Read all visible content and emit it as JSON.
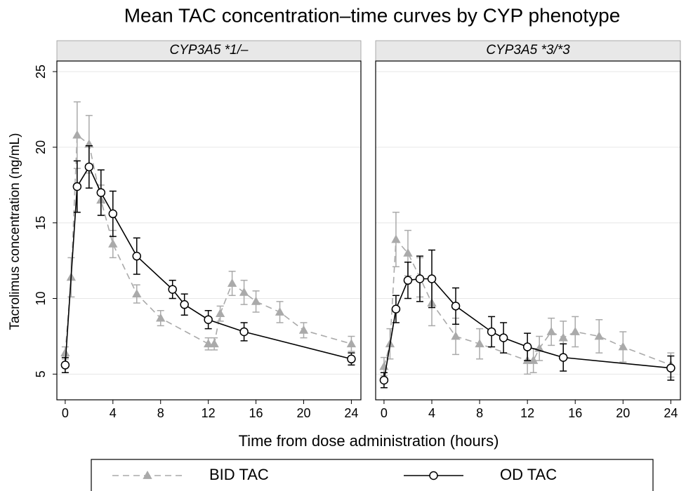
{
  "figure": {
    "title": "Mean TAC concentration–time curves by CYP phenotype",
    "x_label": "Time from dose administration (hours)",
    "y_label": "Tacrolimus concentration (ng/mL)"
  },
  "chart_data": [
    {
      "type": "line",
      "title": "CYP3A5 *1/–",
      "xlim": [
        -0.7,
        24.8
      ],
      "ylim": [
        3.3,
        25.7
      ],
      "xticks": [
        0,
        4,
        8,
        12,
        16,
        20,
        24
      ],
      "yticks": [
        5,
        10,
        15,
        20,
        25
      ],
      "grid": true,
      "series": [
        {
          "name": "BID TAC",
          "color": "#aaaaaa",
          "marker": "triangle",
          "linestyle": "dashed",
          "x": [
            0,
            0.5,
            1,
            2,
            3,
            4,
            6,
            8,
            12,
            12.5,
            13,
            14,
            15,
            16,
            18,
            20,
            24
          ],
          "values": [
            6.4,
            11.4,
            20.8,
            20.2,
            16.5,
            13.6,
            10.3,
            8.7,
            7.0,
            7.0,
            9.0,
            11.0,
            10.4,
            9.8,
            9.1,
            7.9,
            7.0
          ],
          "errors": [
            0.4,
            1.3,
            2.2,
            1.9,
            1.0,
            0.9,
            0.6,
            0.5,
            0.4,
            0.4,
            0.5,
            0.8,
            0.8,
            0.7,
            0.7,
            0.5,
            0.5
          ]
        },
        {
          "name": "OD TAC",
          "color": "#000000",
          "marker": "circle",
          "linestyle": "solid",
          "x": [
            0,
            1,
            2,
            3,
            4,
            6,
            9,
            10,
            12,
            15,
            24
          ],
          "values": [
            5.6,
            17.4,
            18.7,
            17.0,
            15.6,
            12.8,
            10.6,
            9.6,
            8.6,
            7.8,
            6.0
          ],
          "errors": [
            0.5,
            1.7,
            1.4,
            1.5,
            1.5,
            1.2,
            0.6,
            0.7,
            0.6,
            0.6,
            0.4
          ]
        }
      ]
    },
    {
      "type": "line",
      "title": "CYP3A5 *3/*3",
      "xlim": [
        -0.7,
        24.8
      ],
      "ylim": [
        3.3,
        25.7
      ],
      "xticks": [
        0,
        4,
        8,
        12,
        16,
        20,
        24
      ],
      "yticks": [
        5,
        10,
        15,
        20,
        25
      ],
      "grid": true,
      "series": [
        {
          "name": "BID TAC",
          "color": "#aaaaaa",
          "marker": "triangle",
          "linestyle": "dashed",
          "x": [
            0,
            0.5,
            1,
            2,
            3,
            4,
            6,
            8,
            12,
            12.5,
            13,
            14,
            15,
            16,
            18,
            20,
            24
          ],
          "values": [
            5.5,
            7.0,
            13.9,
            13.0,
            11.4,
            9.7,
            7.5,
            7.0,
            5.9,
            5.9,
            6.7,
            7.8,
            7.4,
            7.8,
            7.5,
            6.8,
            5.6
          ],
          "errors": [
            0.6,
            1.0,
            1.8,
            1.5,
            1.3,
            1.5,
            1.2,
            1.0,
            0.9,
            0.8,
            0.8,
            0.9,
            1.1,
            1.0,
            1.1,
            1.0,
            0.8
          ]
        },
        {
          "name": "OD TAC",
          "color": "#000000",
          "marker": "circle",
          "linestyle": "solid",
          "x": [
            0,
            1,
            2,
            3,
            4,
            6,
            9,
            10,
            12,
            15,
            24
          ],
          "values": [
            4.6,
            9.3,
            11.2,
            11.3,
            11.3,
            9.5,
            7.8,
            7.4,
            6.8,
            6.1,
            5.4
          ],
          "errors": [
            0.5,
            0.9,
            1.2,
            1.5,
            1.9,
            1.2,
            1.0,
            1.0,
            0.9,
            0.9,
            0.8
          ]
        }
      ]
    }
  ]
}
